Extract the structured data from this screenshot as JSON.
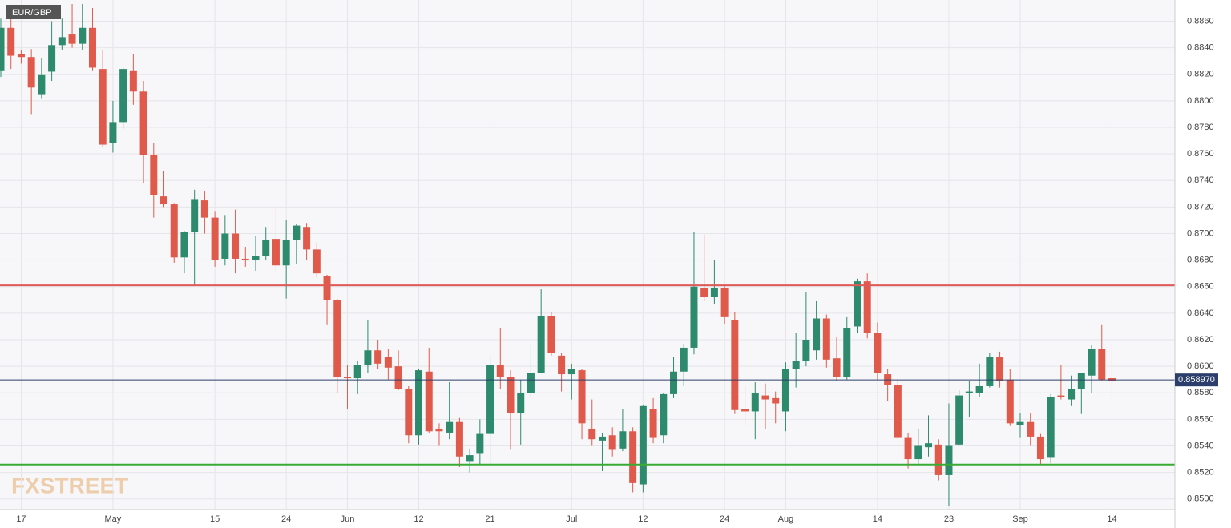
{
  "chart_data": {
    "type": "candlestick",
    "title": "EUR/GBP",
    "watermark": "FXSTREET",
    "categories": [
      null,
      null,
      "17",
      null,
      null,
      null,
      null,
      null,
      null,
      null,
      null,
      "May",
      null,
      null,
      null,
      null,
      null,
      null,
      null,
      null,
      null,
      "15",
      null,
      null,
      null,
      null,
      null,
      null,
      "24",
      null,
      null,
      null,
      null,
      null,
      "Jun",
      null,
      null,
      null,
      null,
      null,
      null,
      "12",
      null,
      null,
      null,
      null,
      null,
      null,
      "21",
      null,
      null,
      null,
      null,
      null,
      null,
      null,
      "Jul",
      null,
      null,
      null,
      null,
      null,
      null,
      "12",
      null,
      null,
      null,
      null,
      null,
      null,
      null,
      "24",
      null,
      null,
      null,
      null,
      null,
      "Aug",
      null,
      null,
      null,
      null,
      null,
      null,
      null,
      null,
      "14",
      null,
      null,
      null,
      null,
      null,
      null,
      "23",
      null,
      null,
      null,
      null,
      null,
      null,
      "Sep",
      null,
      null,
      null,
      null,
      null,
      null,
      null,
      null,
      "14"
    ],
    "open": [
      0.8823,
      0.8855,
      0.8835,
      0.8833,
      0.8805,
      0.8822,
      0.8842,
      0.885,
      0.8843,
      0.8855,
      0.8824,
      0.8768,
      0.8784,
      0.8823,
      0.8807,
      0.8759,
      0.8728,
      0.8722,
      0.8682,
      0.8701,
      0.8725,
      0.8712,
      0.8681,
      0.87,
      0.8681,
      0.868,
      0.8683,
      0.8696,
      0.8676,
      0.8695,
      0.8705,
      0.8688,
      0.8668,
      0.865,
      0.8592,
      0.8591,
      0.8601,
      0.8612,
      0.8607,
      0.86,
      0.8583,
      0.8548,
      0.8596,
      0.8553,
      0.855,
      0.8558,
      0.8528,
      0.8534,
      0.8549,
      0.8601,
      0.8592,
      0.8565,
      0.858,
      0.8595,
      0.8638,
      0.8608,
      0.8594,
      0.8597,
      0.8553,
      0.8544,
      0.8548,
      0.8538,
      0.8551,
      0.8511,
      0.8568,
      0.8548,
      0.8579,
      0.8596,
      0.8614,
      0.8659,
      0.8652,
      0.8659,
      0.8635,
      0.8568,
      0.8566,
      0.8578,
      0.8576,
      0.8566,
      0.8598,
      0.8604,
      0.8612,
      0.8636,
      0.8606,
      0.8592,
      0.863,
      0.8664,
      0.8625,
      0.8594,
      0.8586,
      0.8546,
      0.853,
      0.8539,
      0.8541,
      0.8518,
      0.8541,
      0.858,
      0.858,
      0.8585,
      0.8607,
      0.859,
      0.8556,
      0.8558,
      0.8547,
      0.8531,
      0.8578,
      0.8575,
      0.8583,
      0.8593,
      0.8613,
      0.8591
    ],
    "high": [
      0.8862,
      0.8862,
      0.8838,
      0.8839,
      0.8832,
      0.886,
      0.8862,
      0.8873,
      0.8873,
      0.887,
      0.8838,
      0.88,
      0.8825,
      0.8835,
      0.8815,
      0.8768,
      0.8747,
      0.8723,
      0.8702,
      0.8733,
      0.8732,
      0.8717,
      0.8714,
      0.8718,
      0.869,
      0.8698,
      0.8705,
      0.8719,
      0.871,
      0.8707,
      0.8708,
      0.8693,
      0.8669,
      0.8651,
      0.8601,
      0.8604,
      0.8635,
      0.862,
      0.8613,
      0.8612,
      0.8585,
      0.8598,
      0.8614,
      0.8557,
      0.8588,
      0.8561,
      0.8538,
      0.856,
      0.8608,
      0.8629,
      0.8597,
      0.859,
      0.8616,
      0.8658,
      0.8641,
      0.861,
      0.8602,
      0.8598,
      0.8575,
      0.855,
      0.8554,
      0.8568,
      0.8554,
      0.8571,
      0.8576,
      0.858,
      0.8607,
      0.8617,
      0.8701,
      0.8699,
      0.868,
      0.8662,
      0.8641,
      0.8585,
      0.8588,
      0.8587,
      0.8581,
      0.8603,
      0.8625,
      0.8656,
      0.8649,
      0.8639,
      0.8622,
      0.8637,
      0.8666,
      0.867,
      0.8633,
      0.8598,
      0.859,
      0.855,
      0.8553,
      0.8563,
      0.8545,
      0.8572,
      0.8582,
      0.8589,
      0.8602,
      0.861,
      0.8611,
      0.8598,
      0.8565,
      0.8565,
      0.8549,
      0.8579,
      0.8601,
      0.8593,
      0.8595,
      0.8616,
      0.8631,
      0.8617
    ],
    "low": [
      0.8818,
      0.8824,
      0.8828,
      0.879,
      0.8802,
      0.8815,
      0.8838,
      0.884,
      0.8838,
      0.8823,
      0.8765,
      0.8761,
      0.8779,
      0.8797,
      0.8738,
      0.8712,
      0.872,
      0.8678,
      0.867,
      0.8661,
      0.87,
      0.8675,
      0.8676,
      0.867,
      0.8675,
      0.8672,
      0.868,
      0.8672,
      0.8651,
      0.8677,
      0.868,
      0.8667,
      0.8631,
      0.858,
      0.8568,
      0.8579,
      0.8595,
      0.8598,
      0.859,
      0.8582,
      0.8542,
      0.8541,
      0.855,
      0.854,
      0.8545,
      0.8524,
      0.852,
      0.8526,
      0.8526,
      0.8583,
      0.8537,
      0.8541,
      0.8577,
      0.8595,
      0.8608,
      0.8581,
      0.8575,
      0.8545,
      0.854,
      0.8521,
      0.8532,
      0.8536,
      0.8505,
      0.8505,
      0.8542,
      0.8542,
      0.8576,
      0.8585,
      0.8609,
      0.8649,
      0.8647,
      0.8632,
      0.8564,
      0.8555,
      0.8545,
      0.8553,
      0.8557,
      0.8551,
      0.8584,
      0.86,
      0.8605,
      0.8599,
      0.8589,
      0.859,
      0.8625,
      0.8621,
      0.859,
      0.8574,
      0.8545,
      0.8523,
      0.8525,
      0.8532,
      0.8514,
      0.8495,
      0.854,
      0.8562,
      0.8577,
      0.8584,
      0.8584,
      0.8555,
      0.8546,
      0.854,
      0.8526,
      0.8527,
      0.8575,
      0.857,
      0.8564,
      0.858,
      0.8589,
      0.8578
    ],
    "close": [
      0.8855,
      0.8834,
      0.8833,
      0.881,
      0.882,
      0.8842,
      0.8848,
      0.8843,
      0.8855,
      0.8825,
      0.8767,
      0.8784,
      0.8824,
      0.8807,
      0.8759,
      0.8729,
      0.8722,
      0.8682,
      0.8701,
      0.8726,
      0.8712,
      0.868,
      0.87,
      0.8681,
      0.868,
      0.8683,
      0.8695,
      0.8676,
      0.8695,
      0.8706,
      0.8688,
      0.867,
      0.865,
      0.8592,
      0.8591,
      0.8601,
      0.8612,
      0.8602,
      0.8599,
      0.8583,
      0.8548,
      0.8597,
      0.8551,
      0.8551,
      0.8558,
      0.8532,
      0.8533,
      0.8549,
      0.8601,
      0.8592,
      0.8565,
      0.858,
      0.8595,
      0.8638,
      0.861,
      0.8594,
      0.8598,
      0.8557,
      0.8545,
      0.8547,
      0.8537,
      0.8551,
      0.8512,
      0.857,
      0.8546,
      0.8579,
      0.8596,
      0.8614,
      0.866,
      0.8652,
      0.8659,
      0.8637,
      0.8567,
      0.8566,
      0.858,
      0.8575,
      0.8572,
      0.8598,
      0.8604,
      0.862,
      0.8636,
      0.8605,
      0.8592,
      0.8629,
      0.8664,
      0.8625,
      0.8595,
      0.8586,
      0.8546,
      0.853,
      0.854,
      0.8542,
      0.8518,
      0.854,
      0.8578,
      0.8581,
      0.8585,
      0.8607,
      0.8589,
      0.8557,
      0.8558,
      0.8547,
      0.853,
      0.8577,
      0.8577,
      0.8583,
      0.8595,
      0.8613,
      0.859,
      0.8589
    ],
    "up_color": "#2d8a6d",
    "down_color": "#e05a4b",
    "levels": [
      {
        "value": 0.8661,
        "color": "#e05a55"
      },
      {
        "value": 0.8526,
        "color": "#3aaa35"
      }
    ],
    "last_price": {
      "value": 0.85897,
      "label": "0.858970",
      "color": "#2c3e6b"
    },
    "ylim": [
      0.8492,
      0.8876
    ],
    "yticks": [
      {
        "value": 0.85,
        "label": "0.8500"
      },
      {
        "value": 0.852,
        "label": "0.8520"
      },
      {
        "value": 0.854,
        "label": "0.8540"
      },
      {
        "value": 0.856,
        "label": "0.8560"
      },
      {
        "value": 0.858,
        "label": "0.8580"
      },
      {
        "value": 0.86,
        "label": "0.8600"
      },
      {
        "value": 0.862,
        "label": "0.8620"
      },
      {
        "value": 0.864,
        "label": "0.8640"
      },
      {
        "value": 0.866,
        "label": "0.8660"
      },
      {
        "value": 0.868,
        "label": "0.8680"
      },
      {
        "value": 0.87,
        "label": "0.8700"
      },
      {
        "value": 0.872,
        "label": "0.8720"
      },
      {
        "value": 0.874,
        "label": "0.8740"
      },
      {
        "value": 0.876,
        "label": "0.8760"
      },
      {
        "value": 0.878,
        "label": "0.8780"
      },
      {
        "value": 0.88,
        "label": "0.8800"
      },
      {
        "value": 0.882,
        "label": "0.8820"
      },
      {
        "value": 0.884,
        "label": "0.8840"
      },
      {
        "value": 0.886,
        "label": "0.8860"
      }
    ],
    "grid": true
  }
}
